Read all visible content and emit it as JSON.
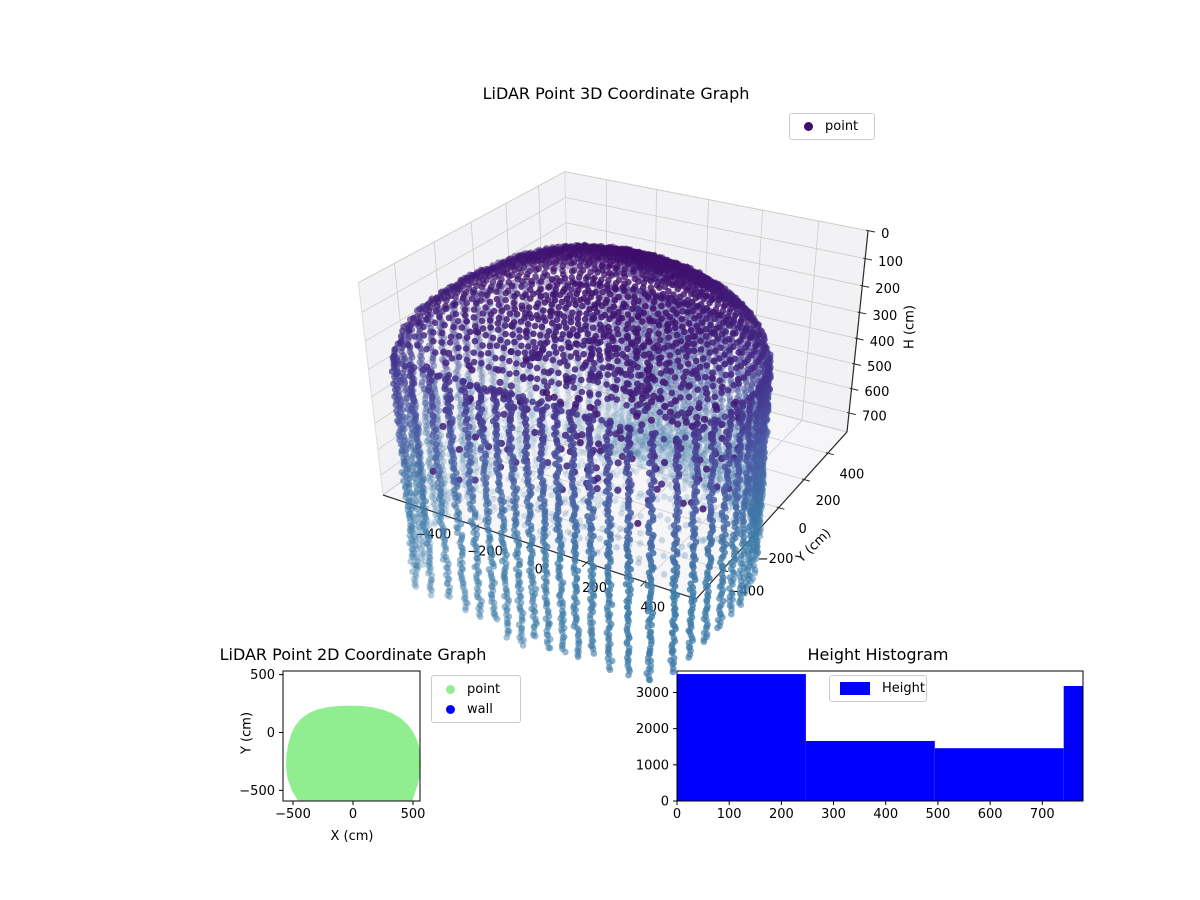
{
  "figure": {
    "background": "#ffffff",
    "text_color": "#000000"
  },
  "chart_data": [
    {
      "type": "scatter3d",
      "title": "LiDAR Point 3D Coordinate Graph",
      "legend": [
        {
          "label": "point",
          "color": "#400d6b"
        }
      ],
      "ylabel": "Y (cm)",
      "zlabel": "H (cm)",
      "x_ticks": [
        -400,
        -200,
        0,
        200,
        400
      ],
      "y_ticks": [
        -400,
        -200,
        0,
        200,
        400
      ],
      "z_ticks": [
        0,
        100,
        200,
        300,
        400,
        500,
        600,
        700
      ],
      "z_axis_inverted": true,
      "xlim": [
        -570,
        570
      ],
      "ylim": [
        -570,
        570
      ],
      "zlim": [
        0,
        780
      ],
      "colormap": [
        [
          0,
          "#400d6b"
        ],
        [
          0.32,
          "#45368f"
        ],
        [
          0.6,
          "#4b5ba4"
        ],
        [
          1,
          "#3e7ca9"
        ]
      ],
      "structure": {
        "shape": "room scan: dome ceiling cap over vertical wall point columns, colored by height",
        "dome_depth_cm": 230,
        "wall_columns": 72,
        "wall_bottom_overshoot_cm": [
          120,
          430
        ],
        "radius_profile": "footprint_outline of 2D chart",
        "interior": [
          "faint floor scan rings",
          "dark scattered object points"
        ]
      },
      "pane_color": "#f2f2f4",
      "floor_color": "#f6f6f8",
      "grid_color": "#cccccc"
    },
    {
      "type": "scatter",
      "title": "LiDAR Point 2D Coordinate Graph",
      "xlabel": "X (cm)",
      "ylabel": "Y (cm)",
      "x_ticks": [
        -500,
        0,
        500
      ],
      "y_ticks": [
        -500,
        0,
        500
      ],
      "xlim": [
        -583,
        558
      ],
      "ylim": [
        -591,
        531
      ],
      "legend": [
        {
          "label": "point",
          "color": "#90ee90"
        },
        {
          "label": "wall",
          "color": "#0000ff"
        }
      ],
      "series": [
        {
          "name": "point",
          "color": "#90ee90",
          "rendered_as": "dense filled region"
        },
        {
          "name": "wall",
          "color": "#0000ff",
          "note": "no wall points visible (covered by point region)"
        }
      ],
      "footprint_outline": [
        [
          -460,
          -586
        ],
        [
          -510,
          -500
        ],
        [
          -545,
          -400
        ],
        [
          -558,
          -300
        ],
        [
          -555,
          -200
        ],
        [
          -540,
          -100
        ],
        [
          -515,
          -10
        ],
        [
          -480,
          60
        ],
        [
          -432,
          120
        ],
        [
          -370,
          166
        ],
        [
          -300,
          198
        ],
        [
          -218,
          218
        ],
        [
          -130,
          228
        ],
        [
          -40,
          232
        ],
        [
          60,
          230
        ],
        [
          160,
          218
        ],
        [
          248,
          196
        ],
        [
          330,
          165
        ],
        [
          396,
          124
        ],
        [
          450,
          74
        ],
        [
          492,
          18
        ],
        [
          524,
          -42
        ],
        [
          548,
          -110
        ],
        [
          562,
          -190
        ],
        [
          566,
          -280
        ],
        [
          558,
          -370
        ],
        [
          540,
          -450
        ],
        [
          516,
          -520
        ],
        [
          496,
          -586
        ]
      ]
    },
    {
      "type": "bar",
      "title": "Height Histogram",
      "legend": [
        {
          "label": "Height",
          "color": "#0000ff"
        }
      ],
      "bar_color": "#0000ff",
      "bin_edges": [
        0,
        247,
        494,
        741,
        778
      ],
      "counts": [
        3510,
        1660,
        1460,
        3180
      ],
      "x_ticks": [
        0,
        100,
        200,
        300,
        400,
        500,
        600,
        700
      ],
      "y_ticks": [
        0,
        1000,
        2000,
        3000
      ],
      "xlim": [
        0,
        778
      ],
      "ylim": [
        0,
        3600
      ]
    }
  ]
}
